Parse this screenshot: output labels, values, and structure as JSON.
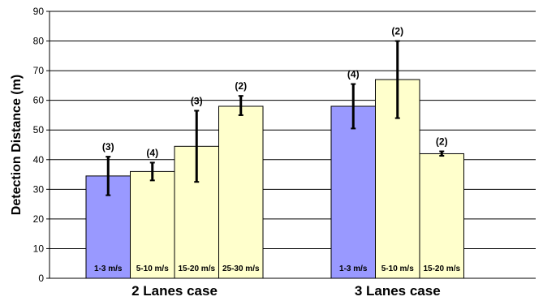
{
  "chart_data": {
    "type": "bar",
    "ylabel": "Detection Distance (m)",
    "ylim": [
      0,
      90
    ],
    "yticks": [
      0,
      10,
      20,
      30,
      40,
      50,
      60,
      70,
      80,
      90
    ],
    "grid": true,
    "colors": {
      "low_speed": "#9999ff",
      "high_speed": "#ffffcc",
      "error": "#000000"
    },
    "groups": [
      {
        "name": "2 Lanes case",
        "bars": [
          {
            "label": "1-3 m/s",
            "value": 34.5,
            "err_low": 28.0,
            "err_high": 41.0,
            "count": "(3)",
            "color_key": "low_speed"
          },
          {
            "label": "5-10 m/s",
            "value": 36.0,
            "err_low": 33.0,
            "err_high": 39.0,
            "count": "(4)",
            "color_key": "high_speed"
          },
          {
            "label": "15-20 m/s",
            "value": 44.5,
            "err_low": 32.5,
            "err_high": 56.5,
            "count": "(3)",
            "color_key": "high_speed"
          },
          {
            "label": "25-30 m/s",
            "value": 58.0,
            "err_low": 55.0,
            "err_high": 61.5,
            "count": "(2)",
            "color_key": "high_speed"
          }
        ]
      },
      {
        "name": "3 Lanes case",
        "bars": [
          {
            "label": "1-3 m/s",
            "value": 58.0,
            "err_low": 50.5,
            "err_high": 65.5,
            "count": "(4)",
            "color_key": "low_speed"
          },
          {
            "label": "5-10 m/s",
            "value": 67.0,
            "err_low": 54.0,
            "err_high": 80.0,
            "count": "(2)",
            "color_key": "high_speed"
          },
          {
            "label": "15-20 m/s",
            "value": 42.0,
            "err_low": 41.3,
            "err_high": 42.8,
            "count": "(2)",
            "color_key": "high_speed"
          }
        ]
      }
    ]
  }
}
